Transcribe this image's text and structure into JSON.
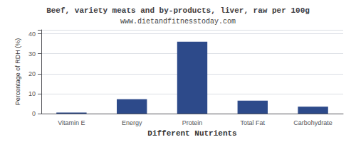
{
  "chart_data": {
    "type": "bar",
    "title": "Beef, variety meats and by-products, liver, raw per 100g",
    "subtitle": "www.dietandfitnesstoday.com",
    "xlabel": "Different Nutrients",
    "ylabel": "Percentage of RDH (%)",
    "categories": [
      "Vitamin E",
      "Energy",
      "Protein",
      "Total Fat",
      "Carbohydrate"
    ],
    "values": [
      0.5,
      7.2,
      36.0,
      6.5,
      3.5
    ],
    "color": "#2d4a8a",
    "ylim": [
      0,
      42
    ],
    "yticks": [
      0,
      10,
      20,
      30,
      40
    ],
    "grid": true
  }
}
